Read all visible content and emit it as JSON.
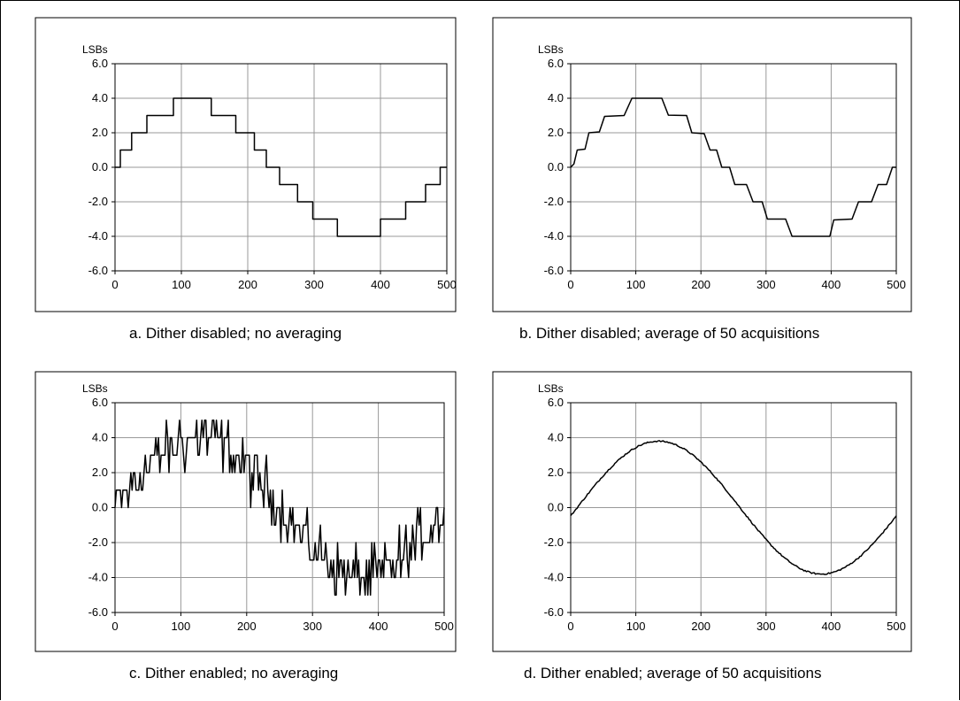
{
  "chart_data": [
    {
      "id": "a",
      "type": "line",
      "ylabel": "LSBs",
      "xlim": [
        0,
        500
      ],
      "ylim": [
        -6,
        6
      ],
      "xticks": [
        "0",
        "100",
        "200",
        "300",
        "400",
        "500"
      ],
      "yticks": [
        "6.0",
        "4.0",
        "2.0",
        "0.0",
        "-2.0",
        "-4.0",
        "-6.0"
      ],
      "caption": "a.  Dither disabled; no averaging",
      "grid": true,
      "signal": "quantized sine wave, amplitude 4 LSBs, one period over 500 samples",
      "series": [
        {
          "x": [
            0,
            8,
            8,
            25,
            25,
            48,
            48,
            88,
            88,
            145,
            145,
            182,
            182,
            210,
            210,
            228,
            228,
            248,
            248,
            275,
            275,
            298,
            298,
            335,
            335,
            400,
            400,
            438,
            438,
            468,
            468,
            490,
            490,
            500
          ],
          "y": [
            0,
            0,
            1,
            1,
            2,
            2,
            3,
            3,
            4,
            4,
            3,
            3,
            2,
            2,
            1,
            1,
            0,
            0,
            -1,
            -1,
            -2,
            -2,
            -3,
            -3,
            -4,
            -4,
            -3,
            -3,
            -2,
            -2,
            -1,
            -1,
            0,
            0
          ]
        }
      ]
    },
    {
      "id": "b",
      "type": "line",
      "ylabel": "LSBs",
      "xlim": [
        0,
        500
      ],
      "ylim": [
        -6,
        6
      ],
      "xticks": [
        "0",
        "100",
        "200",
        "300",
        "400",
        "500"
      ],
      "yticks": [
        "6.0",
        "4.0",
        "2.0",
        "0.0",
        "-2.0",
        "-4.0",
        "-6.0"
      ],
      "caption": "b.  Dither disabled; average of 50 acquisitions",
      "grid": true,
      "signal": "averaged quantized sine wave with rounded steps, amplitude 4 LSBs",
      "series": [
        {
          "x": [
            0,
            5,
            10,
            22,
            28,
            44,
            52,
            82,
            94,
            140,
            150,
            178,
            186,
            205,
            214,
            224,
            232,
            244,
            252,
            270,
            280,
            294,
            302,
            330,
            340,
            398,
            404,
            432,
            442,
            462,
            472,
            485,
            494,
            500
          ],
          "y": [
            0,
            0.2,
            1,
            1.05,
            2,
            2.05,
            2.95,
            3,
            4,
            4,
            3.02,
            3,
            2,
            1.95,
            1,
            1,
            0,
            0,
            -1,
            -1,
            -2,
            -2,
            -3,
            -3,
            -4,
            -4,
            -3.05,
            -3,
            -2,
            -2,
            -1,
            -1,
            0,
            0
          ]
        }
      ]
    },
    {
      "id": "c",
      "type": "line",
      "ylabel": "LSBs",
      "xlim": [
        0,
        500
      ],
      "ylim": [
        -6,
        6
      ],
      "xticks": [
        "0",
        "100",
        "200",
        "300",
        "400",
        "500"
      ],
      "yticks": [
        "6.0",
        "4.0",
        "2.0",
        "0.0",
        "-2.0",
        "-4.0",
        "-6.0"
      ],
      "caption": "c.  Dither enabled; no averaging",
      "grid": true,
      "signal": "noisy quantized sine wave (integer levels), amplitude 4 LSBs, peaks reaching 5 and -5"
    },
    {
      "id": "d",
      "type": "line",
      "ylabel": "LSBs",
      "xlim": [
        0,
        500
      ],
      "ylim": [
        -6,
        6
      ],
      "xticks": [
        "0",
        "100",
        "200",
        "300",
        "400",
        "500"
      ],
      "yticks": [
        "6.0",
        "4.0",
        "2.0",
        "0.0",
        "-2.0",
        "-4.0",
        "-6.0"
      ],
      "caption": "d.  Dither enabled; average of 50 acquisitions",
      "grid": true,
      "signal": "smooth sine wave, amplitude 3.8 LSBs, peak near x=135, trough near x=385"
    }
  ]
}
